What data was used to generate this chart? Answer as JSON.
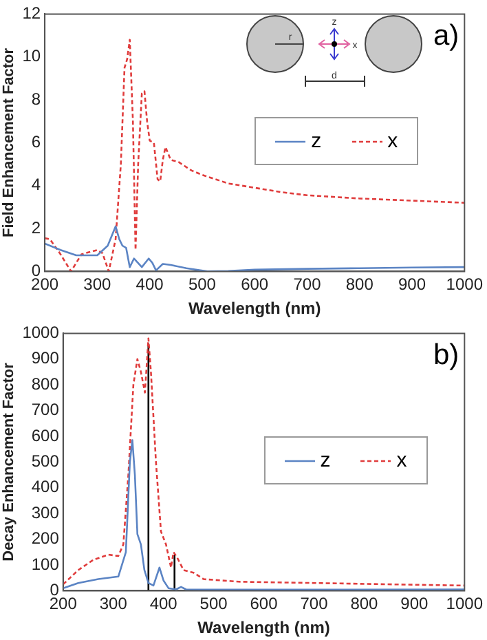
{
  "chart_data": [
    {
      "type": "line",
      "xlabel": "Wavelength (nm)",
      "ylabel": "Field Enhancement Factor",
      "xlim": [
        200,
        1000
      ],
      "xticks": [
        200,
        300,
        400,
        500,
        600,
        700,
        800,
        900,
        1000
      ],
      "ylim": [
        0,
        12
      ],
      "yticks": [
        0,
        2,
        4,
        6,
        8,
        10,
        12
      ],
      "grid": false,
      "legend": "center right",
      "marker": "none",
      "annotations": [
        "a)",
        "r",
        "z",
        "x",
        "d"
      ],
      "series": [
        {
          "name": "z",
          "color": "#5b84c4",
          "line_style": "solid",
          "x": [
            200,
            230,
            260,
            300,
            320,
            335,
            342,
            348,
            355,
            362,
            370,
            385,
            398,
            405,
            412,
            425,
            440,
            470,
            510,
            550,
            600,
            700,
            800,
            900,
            1000
          ],
          "values": [
            1.3,
            1.0,
            0.75,
            0.75,
            1.2,
            2.1,
            1.5,
            1.2,
            1.1,
            0.2,
            0.6,
            0.2,
            0.6,
            0.4,
            0.05,
            0.35,
            0.3,
            0.15,
            0.0,
            0.02,
            0.08,
            0.12,
            0.15,
            0.18,
            0.2
          ]
        },
        {
          "name": "x",
          "color": "#e03c3c",
          "line_style": "dashed",
          "x": [
            200,
            210,
            230,
            250,
            270,
            300,
            310,
            322,
            335,
            345,
            352,
            357,
            362,
            368,
            373,
            378,
            385,
            390,
            395,
            400,
            408,
            415,
            420,
            425,
            430,
            440,
            455,
            480,
            500,
            550,
            600,
            650,
            700,
            800,
            900,
            1000
          ],
          "values": [
            1.55,
            1.5,
            0.8,
            0.0,
            0.8,
            1.0,
            0.85,
            0.0,
            1.5,
            5,
            9.5,
            9.9,
            10.8,
            7,
            1.0,
            5,
            8.3,
            8.4,
            7,
            6.1,
            6,
            4.3,
            4.2,
            5.2,
            5.8,
            5.2,
            5.1,
            4.7,
            4.5,
            4.1,
            3.9,
            3.7,
            3.55,
            3.4,
            3.3,
            3.2
          ]
        }
      ]
    },
    {
      "type": "line",
      "xlabel": "Wavelength (nm)",
      "ylabel": "Decay Enhancement Factor",
      "xlim": [
        200,
        1000
      ],
      "xticks": [
        200,
        300,
        400,
        500,
        600,
        700,
        800,
        900,
        1000
      ],
      "ylim": [
        0,
        1000
      ],
      "yticks": [
        0,
        100,
        200,
        300,
        400,
        500,
        600,
        700,
        800,
        900,
        1000
      ],
      "grid": false,
      "legend": "center right",
      "marker": "none",
      "annotations": [
        "b)"
      ],
      "series": [
        {
          "name": "z",
          "color": "#5b84c4",
          "line_style": "solid",
          "x": [
            200,
            230,
            270,
            310,
            325,
            333,
            338,
            343,
            348,
            355,
            362,
            370,
            380,
            392,
            400,
            410,
            425,
            435,
            445,
            500,
            1000
          ],
          "values": [
            10,
            30,
            45,
            55,
            150,
            500,
            585,
            450,
            220,
            180,
            80,
            30,
            20,
            90,
            40,
            10,
            5,
            15,
            5,
            4,
            5
          ]
        },
        {
          "name": "x",
          "color": "#e03c3c",
          "line_style": "dashed",
          "x": [
            200,
            230,
            260,
            290,
            310,
            320,
            330,
            340,
            348,
            355,
            363,
            370,
            375,
            385,
            395,
            405,
            415,
            420,
            427,
            440,
            460,
            480,
            550,
            700,
            1000
          ],
          "values": [
            25,
            80,
            120,
            140,
            135,
            180,
            450,
            800,
            900,
            850,
            770,
            980,
            850,
            500,
            230,
            180,
            90,
            150,
            130,
            80,
            70,
            45,
            35,
            30,
            20
          ]
        },
        {
          "color": "#000000",
          "line_style": "solid",
          "x": [
            370,
            370
          ],
          "values": [
            0,
            960
          ]
        },
        {
          "color": "#000000",
          "line_style": "solid",
          "x": [
            422,
            422
          ],
          "values": [
            0,
            140
          ]
        }
      ]
    }
  ]
}
